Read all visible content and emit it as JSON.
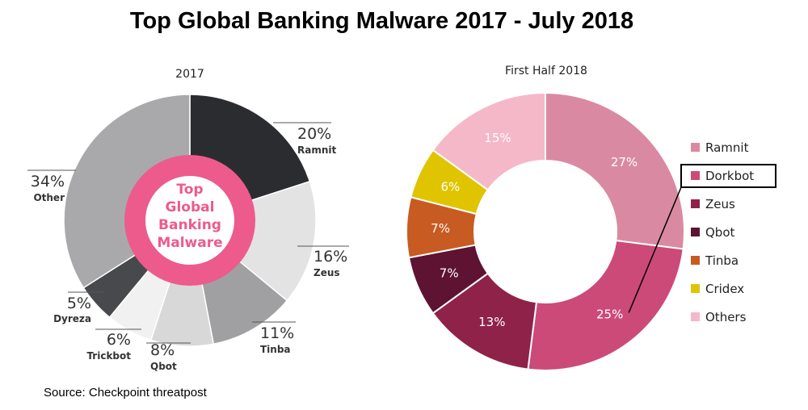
{
  "title": "Top Global Banking Malware  2017 - July 2018",
  "source": "Source: Checkpoint threatpost",
  "chart_data": [
    {
      "type": "pie",
      "title": "2017",
      "center_label": [
        "Top",
        "Global",
        "Banking",
        "Malware"
      ],
      "slices": [
        {
          "label": "Ramnit",
          "value": 20,
          "display": "20%",
          "color": "#2b2c30"
        },
        {
          "label": "Zeus",
          "value": 16,
          "display": "16%",
          "color": "#e3e3e4"
        },
        {
          "label": "Tinba",
          "value": 11,
          "display": "11%",
          "color": "#a0a0a3"
        },
        {
          "label": "Qbot",
          "value": 8,
          "display": "8%",
          "color": "#d8d8d9"
        },
        {
          "label": "Trickbot",
          "value": 6,
          "display": "6%",
          "color": "#f1f1f2"
        },
        {
          "label": "Dyreza",
          "value": 5,
          "display": "5%",
          "color": "#48494c"
        },
        {
          "label": "Other",
          "value": 34,
          "display": "34%",
          "color": "#a9a9ac"
        }
      ],
      "ring_color": "#ec5b8c"
    },
    {
      "type": "pie",
      "title": "First Half 2018",
      "slices": [
        {
          "label": "Ramnit",
          "value": 27,
          "display": "27%",
          "color": "#d98aa2"
        },
        {
          "label": "Dorkbot",
          "value": 25,
          "display": "25%",
          "color": "#cc4a78"
        },
        {
          "label": "Zeus",
          "value": 13,
          "display": "13%",
          "color": "#8f2248"
        },
        {
          "label": "Qbot",
          "value": 7,
          "display": "7%",
          "color": "#5d1331"
        },
        {
          "label": "Tinba",
          "value": 7,
          "display": "7%",
          "color": "#c85b22"
        },
        {
          "label": "Cridex",
          "value": 6,
          "display": "6%",
          "color": "#e0c400"
        },
        {
          "label": "Others",
          "value": 15,
          "display": "15%",
          "color": "#f5b8c8"
        }
      ],
      "legend": "right",
      "highlighted": "Dorkbot"
    }
  ]
}
